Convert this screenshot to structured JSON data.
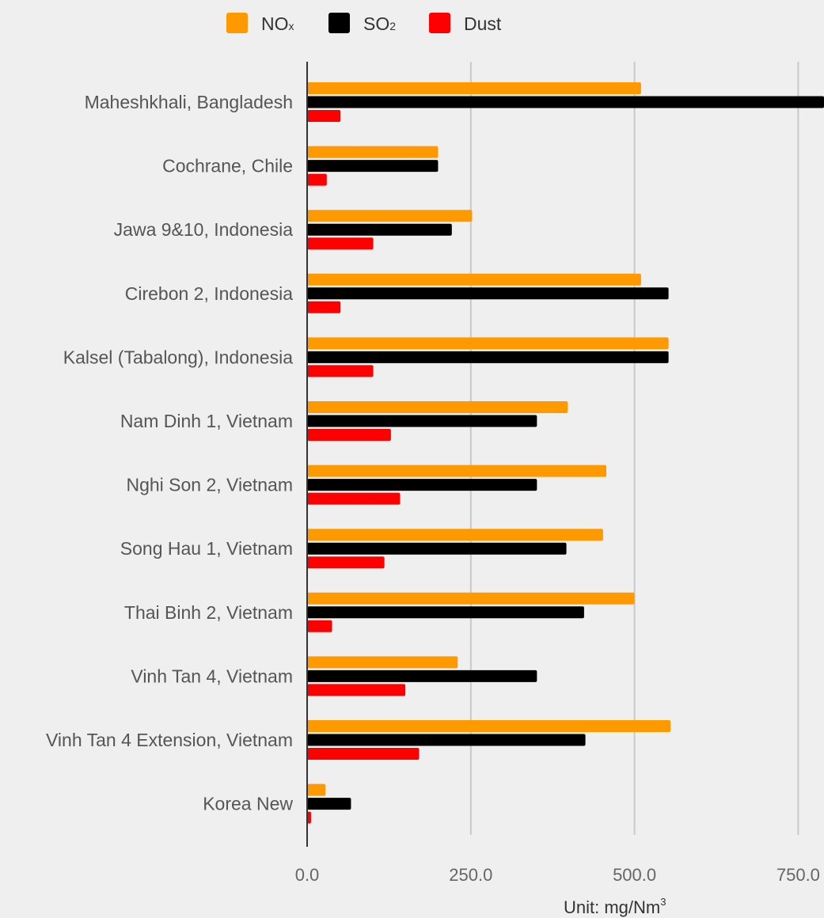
{
  "chart_data": {
    "type": "bar",
    "orientation": "horizontal",
    "categories": [
      "Maheshkhali, Bangladesh",
      "Cochrane, Chile",
      "Jawa 9&10, Indonesia",
      "Cirebon 2, Indonesia",
      "Kalsel (Tabalong), Indonesia",
      "Nam Dinh 1, Vietnam",
      "Nghi Son 2, Vietnam",
      "Song Hau 1, Vietnam",
      "Thai Binh 2, Vietnam",
      "Vinh Tan 4, Vietnam",
      "Vinh Tan 4 Extension, Vietnam",
      "Korea New"
    ],
    "series": [
      {
        "name": "NOx",
        "legend_main": "NO",
        "legend_sub": "x",
        "color": "#ff9900",
        "values": [
          510,
          200,
          252,
          510,
          552,
          398,
          457,
          452,
          500,
          230,
          555,
          28
        ]
      },
      {
        "name": "SO2",
        "legend_main": "SO",
        "legend_sub": "2",
        "color": "#000000",
        "values": [
          800,
          200,
          221,
          552,
          552,
          351,
          351,
          396,
          423,
          351,
          425,
          67
        ]
      },
      {
        "name": "Dust",
        "legend_main": "Dust",
        "legend_sub": "",
        "color": "#ff0000",
        "values": [
          51,
          30,
          101,
          51,
          101,
          128,
          142,
          118,
          38,
          150,
          171,
          6
        ]
      }
    ],
    "xticks": [
      "0.0",
      "250.0",
      "500.0",
      "750.0"
    ],
    "xtick_values": [
      0,
      250,
      500,
      750
    ],
    "xlim": [
      0,
      790
    ],
    "grid": true,
    "legend_position": "top-center",
    "unit": {
      "main": "Unit: mg/Nm",
      "sup": "3"
    }
  }
}
